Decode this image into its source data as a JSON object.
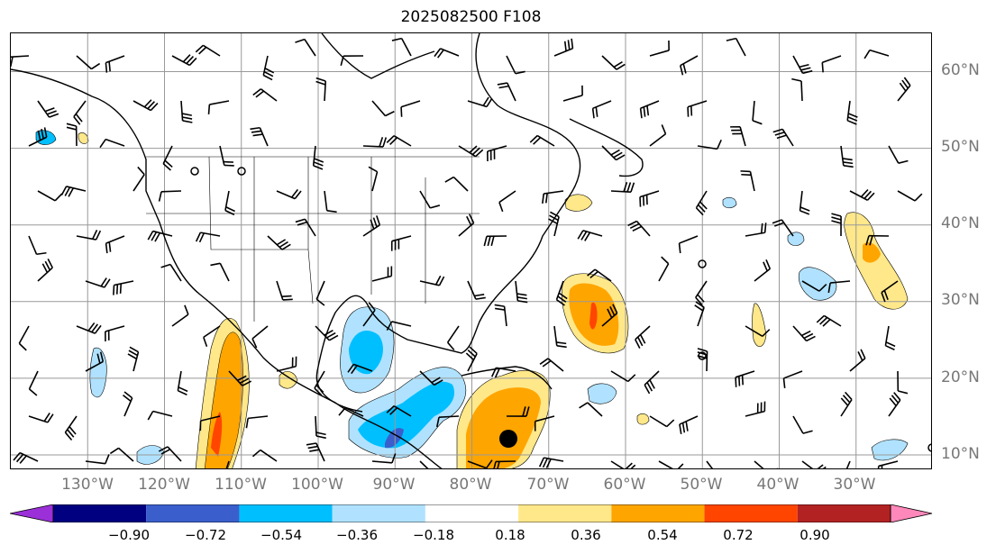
{
  "title": "2025082500 F108",
  "lat_labels": [
    "60°N",
    "50°N",
    "40°N",
    "30°N",
    "20°N",
    "10°N"
  ],
  "lon_labels": [
    "130°W",
    "120°W",
    "110°W",
    "100°W",
    "90°W",
    "80°W",
    "70°W",
    "60°W",
    "50°W",
    "40°W",
    "30°W"
  ],
  "colorbar": {
    "ticks": [
      "−0.90",
      "−0.72",
      "−0.54",
      "−0.36",
      "−0.18",
      "0.18",
      "0.36",
      "0.54",
      "0.72",
      "0.90"
    ],
    "colors": [
      "#9b30d9",
      "#000080",
      "#3a5fcd",
      "#00bfff",
      "#b0e2ff",
      "#ffffff",
      "#ffe88a",
      "#ffa500",
      "#ff4500",
      "#b22222",
      "#ff88bb"
    ]
  },
  "map_extent": {
    "lon_min": -140,
    "lon_max": -20,
    "lat_min": 8,
    "lat_max": 65
  },
  "land_color": "#ffffff",
  "grid_color": "#999999"
}
